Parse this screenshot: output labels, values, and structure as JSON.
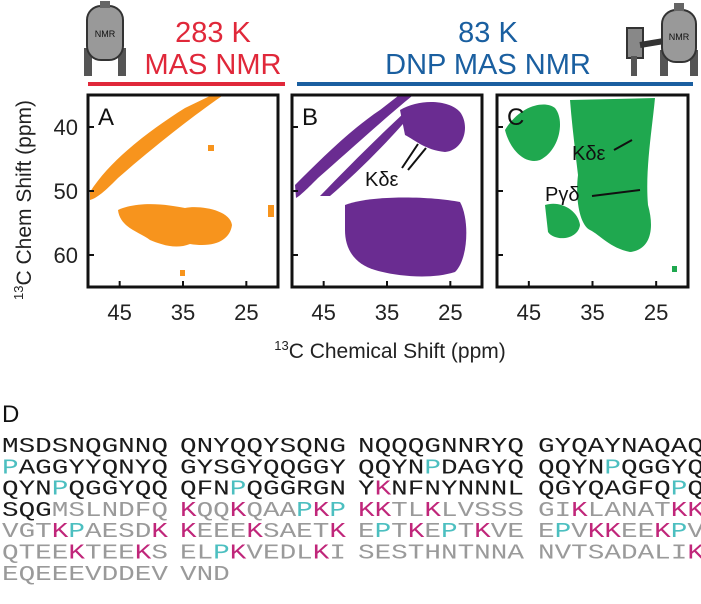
{
  "header": {
    "left": {
      "line1": "283 K",
      "line2": "MAS NMR",
      "color": "#e0283a"
    },
    "right": {
      "line1": "83 K",
      "line2": "DNP MAS NMR",
      "color": "#1a5fa0"
    },
    "icon_text": "NMR"
  },
  "spectra": {
    "xlim": [
      50,
      20
    ],
    "xticks": [
      45,
      35,
      25
    ],
    "ylim": [
      35,
      65
    ],
    "yticks": [
      40,
      50,
      60
    ],
    "xlabel": {
      "sup": "13",
      "text": "C Chemical Shift (ppm)"
    },
    "ylabel": {
      "sup": "13",
      "text": "C Chem Shift (ppm)"
    },
    "panels": [
      {
        "label": "A",
        "color": "#f7941d",
        "annotations": []
      },
      {
        "label": "B",
        "color": "#6a2c91",
        "annotations": [
          "Kδε"
        ]
      },
      {
        "label": "C",
        "color": "#1fa84f",
        "annotations": [
          "Kδε",
          "Pγδ"
        ]
      }
    ]
  },
  "sequence": {
    "label": "D",
    "columns": 4,
    "groups": [
      "MSDSNQGNNQ",
      "QNYQQYSQNG",
      "NQQQGNNRYQ",
      "GYQAYNAQAQ",
      "PAGGYYQNYQ",
      "GYSGYQQGGY",
      "QQYNPDAGYQ",
      "QQYNPQGGYQ",
      "QYNPQGGYQQ",
      "QFNPQGGRGN",
      "YKNFNYNNNL",
      "QGYQAGFQPQ",
      "SQGMSLNDFQ",
      "KQQKQAAPKP",
      "KKTLKLVSSS",
      "GIKLANATKK",
      "VGTKPAESDK",
      "KEEEKSAETK",
      "EPTKEPTKVE",
      "EPVKKEEKPV",
      "QTEEKTEEKS",
      "ELPKVEDLKI",
      "SESTHNTNNA",
      "NVTSADALIK",
      "EQEEEVDDEV",
      "VND"
    ],
    "residue_colors": {
      "P": "#4cbfc0",
      "K": "#c0267a"
    },
    "base_color": "#1a1a1a",
    "tail_color": "#9a9a9a",
    "tail_from": 123
  }
}
